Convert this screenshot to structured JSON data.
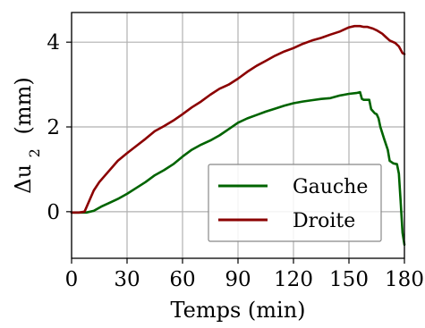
{
  "chart_data": {
    "type": "line",
    "xlabel": "Temps (min)",
    "ylabel_main": "Δu",
    "ylabel_sub": "2",
    "ylabel_unit": "(mm)",
    "xlim": [
      0,
      180
    ],
    "ylim": [
      -1.1,
      4.7
    ],
    "xticks": [
      0,
      30,
      60,
      90,
      120,
      150,
      180
    ],
    "yticks": [
      0,
      2,
      4
    ],
    "grid": true,
    "legend_position": "lower-right",
    "series": [
      {
        "name": "Gauche",
        "color": "#006400",
        "points": [
          [
            0,
            -0.02
          ],
          [
            4,
            -0.02
          ],
          [
            8,
            -0.02
          ],
          [
            12,
            0.02
          ],
          [
            16,
            0.12
          ],
          [
            20,
            0.2
          ],
          [
            25,
            0.3
          ],
          [
            30,
            0.42
          ],
          [
            35,
            0.56
          ],
          [
            40,
            0.7
          ],
          [
            45,
            0.86
          ],
          [
            50,
            0.98
          ],
          [
            55,
            1.12
          ],
          [
            60,
            1.3
          ],
          [
            65,
            1.46
          ],
          [
            70,
            1.58
          ],
          [
            75,
            1.68
          ],
          [
            80,
            1.8
          ],
          [
            85,
            1.95
          ],
          [
            90,
            2.1
          ],
          [
            95,
            2.2
          ],
          [
            100,
            2.28
          ],
          [
            105,
            2.36
          ],
          [
            110,
            2.43
          ],
          [
            115,
            2.5
          ],
          [
            120,
            2.56
          ],
          [
            125,
            2.6
          ],
          [
            130,
            2.63
          ],
          [
            135,
            2.66
          ],
          [
            140,
            2.68
          ],
          [
            145,
            2.74
          ],
          [
            150,
            2.78
          ],
          [
            154,
            2.8
          ],
          [
            156,
            2.82
          ],
          [
            157,
            2.66
          ],
          [
            158,
            2.64
          ],
          [
            161,
            2.64
          ],
          [
            162,
            2.42
          ],
          [
            164,
            2.32
          ],
          [
            165,
            2.3
          ],
          [
            166,
            2.2
          ],
          [
            167,
            2.0
          ],
          [
            169,
            1.72
          ],
          [
            171,
            1.46
          ],
          [
            172,
            1.2
          ],
          [
            174,
            1.14
          ],
          [
            176,
            1.12
          ],
          [
            177,
            0.9
          ],
          [
            178,
            0.2
          ],
          [
            179,
            -0.5
          ],
          [
            180,
            -0.78
          ]
        ]
      },
      {
        "name": "Droite",
        "color": "#8b0000",
        "points": [
          [
            0,
            -0.02
          ],
          [
            4,
            -0.02
          ],
          [
            7,
            0.0
          ],
          [
            9,
            0.2
          ],
          [
            12,
            0.5
          ],
          [
            15,
            0.7
          ],
          [
            20,
            0.95
          ],
          [
            25,
            1.2
          ],
          [
            30,
            1.38
          ],
          [
            35,
            1.55
          ],
          [
            40,
            1.72
          ],
          [
            45,
            1.9
          ],
          [
            50,
            2.02
          ],
          [
            55,
            2.15
          ],
          [
            60,
            2.3
          ],
          [
            65,
            2.46
          ],
          [
            70,
            2.6
          ],
          [
            75,
            2.76
          ],
          [
            80,
            2.9
          ],
          [
            85,
            3.0
          ],
          [
            90,
            3.14
          ],
          [
            95,
            3.3
          ],
          [
            100,
            3.44
          ],
          [
            105,
            3.56
          ],
          [
            110,
            3.68
          ],
          [
            115,
            3.78
          ],
          [
            120,
            3.86
          ],
          [
            125,
            3.96
          ],
          [
            130,
            4.04
          ],
          [
            135,
            4.1
          ],
          [
            140,
            4.18
          ],
          [
            145,
            4.25
          ],
          [
            150,
            4.35
          ],
          [
            153,
            4.38
          ],
          [
            156,
            4.38
          ],
          [
            158,
            4.36
          ],
          [
            160,
            4.36
          ],
          [
            163,
            4.32
          ],
          [
            165,
            4.28
          ],
          [
            168,
            4.2
          ],
          [
            170,
            4.12
          ],
          [
            172,
            4.04
          ],
          [
            175,
            3.98
          ],
          [
            177,
            3.9
          ],
          [
            179,
            3.74
          ],
          [
            180,
            3.72
          ]
        ]
      }
    ]
  }
}
